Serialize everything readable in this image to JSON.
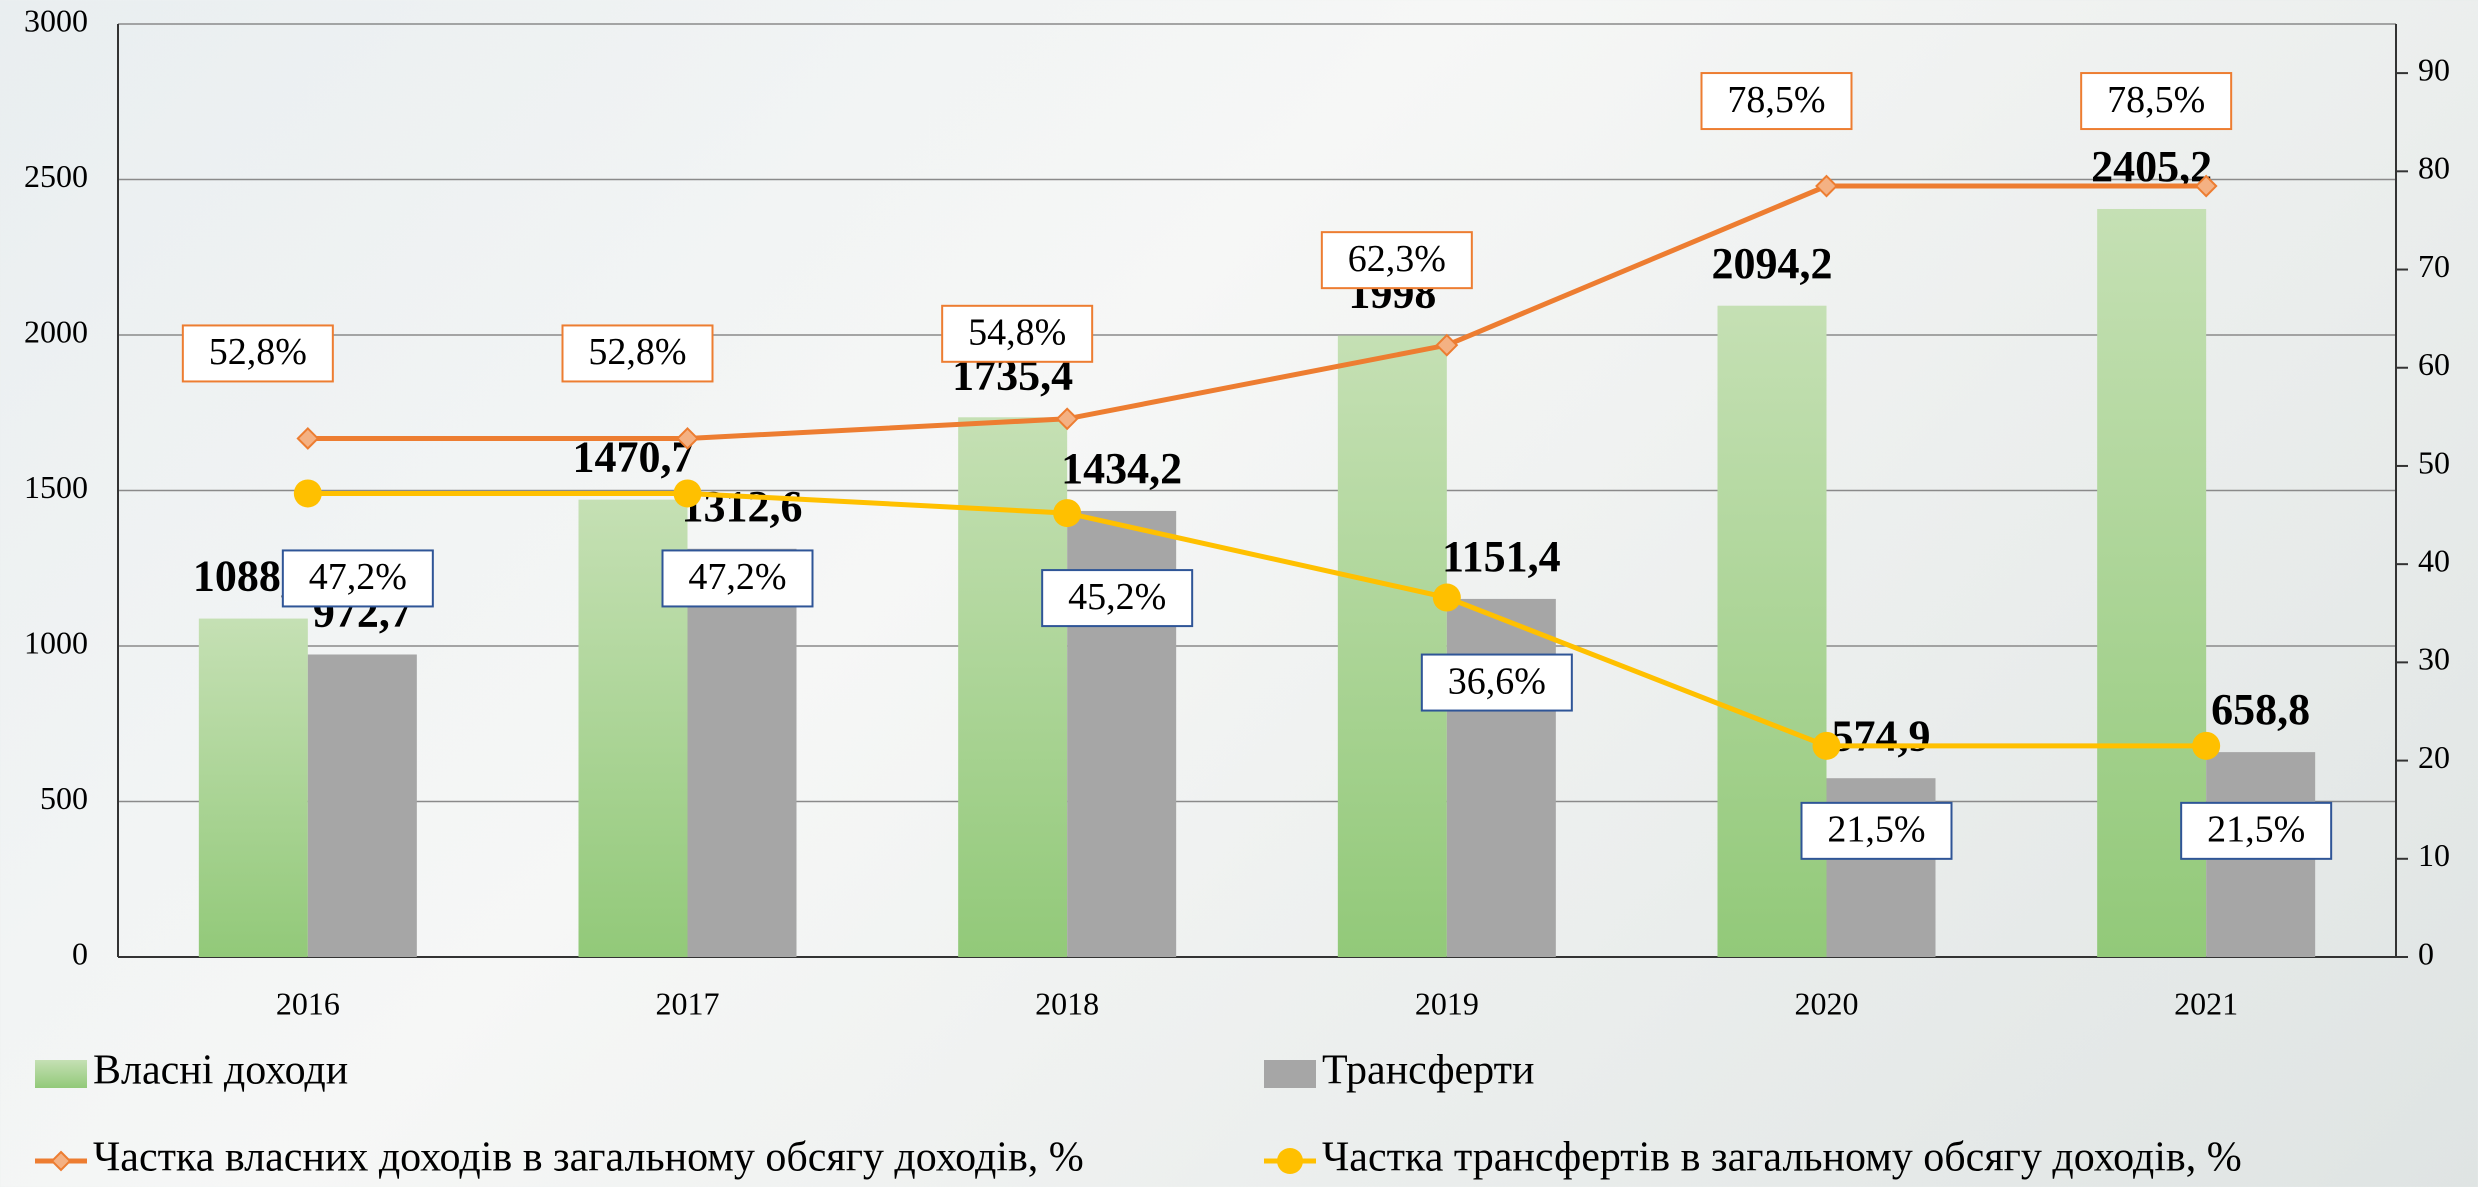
{
  "chart_data": {
    "type": "bar-line",
    "categories": [
      "2016",
      "2017",
      "2018",
      "2019",
      "2020",
      "2021"
    ],
    "series": [
      {
        "name": "Власні доходи",
        "type": "bar",
        "color": "#a9d18e",
        "values": [
          1088.2,
          1470.7,
          1735.4,
          1998,
          2094.2,
          2405.2
        ],
        "value_labels": [
          "1088,2",
          "1470,7",
          "1735,4",
          "1998",
          "2094,2",
          "2405,2"
        ]
      },
      {
        "name": "Трансферти",
        "type": "bar",
        "color": "#a6a6a6",
        "values": [
          972.7,
          1312.6,
          1434.2,
          1151.4,
          574.9,
          658.8
        ],
        "value_labels": [
          "972,7",
          "1312,6",
          "1434,2",
          "1151,4",
          "574,9",
          "658,8"
        ]
      },
      {
        "name": "Частка власних доходів в загальному обсягу доходів, %",
        "type": "line",
        "axis": "y2",
        "color": "#ed7d31",
        "values": [
          52.8,
          52.8,
          54.8,
          62.3,
          78.5,
          78.5
        ],
        "value_labels": [
          "52,8%",
          "52,8%",
          "54,8%",
          "62,3%",
          "78,5%",
          "78,5%"
        ]
      },
      {
        "name": "Частка трансфертів в загальному обсягу доходів, %",
        "type": "line",
        "axis": "y2",
        "color": "#ffc000",
        "values": [
          47.2,
          47.2,
          45.2,
          36.6,
          21.5,
          21.5
        ],
        "value_labels": [
          "47,2%",
          "47,2%",
          "45,2%",
          "36,6%",
          "21,5%",
          "21,5%"
        ]
      }
    ],
    "ylim": [
      0,
      3000
    ],
    "yticks": [
      0,
      500,
      1000,
      1500,
      2000,
      2500,
      3000
    ],
    "y2lim": [
      0,
      95
    ],
    "y2ticks": [
      0,
      10,
      20,
      30,
      40,
      50,
      60,
      70,
      80,
      90
    ],
    "grid": true
  }
}
